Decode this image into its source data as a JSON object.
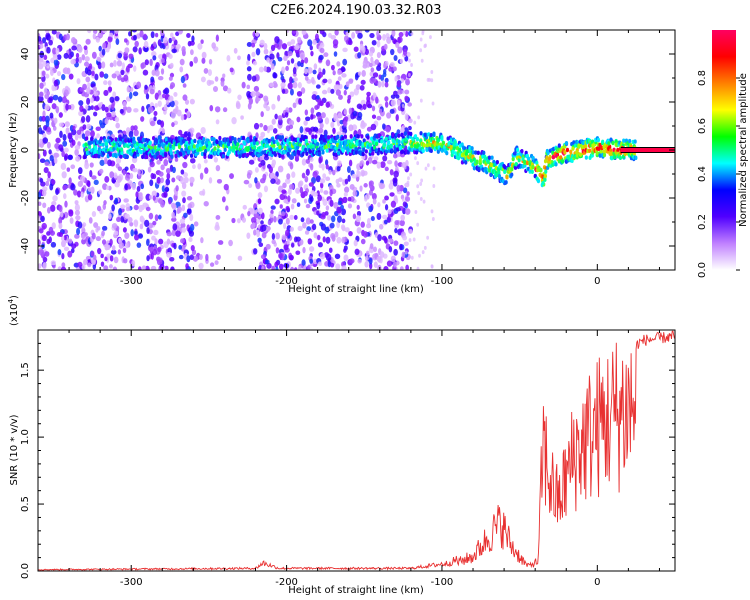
{
  "title": "C2E6.2024.190.03.32.R03",
  "chart_data": [
    {
      "type": "heatmap",
      "xlabel": "Height of straight line (km)",
      "ylabel": "Frequency (Hz)",
      "xlim": [
        -360,
        50
      ],
      "ylim": [
        -50,
        50
      ],
      "x_ticks": [
        -300,
        -200,
        -100,
        0
      ],
      "y_ticks": [
        40,
        20,
        0,
        -20,
        -40
      ],
      "noise_region_x": [
        -360,
        -120
      ],
      "sparse_gap_x": [
        -260,
        -225
      ],
      "ridge": [
        {
          "x": -330,
          "y": 1
        },
        {
          "x": -250,
          "y": 1
        },
        {
          "x": -150,
          "y": 2
        },
        {
          "x": -120,
          "y": 3
        },
        {
          "x": -100,
          "y": 3
        },
        {
          "x": -85,
          "y": -2
        },
        {
          "x": -70,
          "y": -6
        },
        {
          "x": -58,
          "y": -11
        },
        {
          "x": -52,
          "y": -3
        },
        {
          "x": -42,
          "y": -6
        },
        {
          "x": -35,
          "y": -12
        },
        {
          "x": -32,
          "y": -4
        },
        {
          "x": -20,
          "y": -1
        },
        {
          "x": 0,
          "y": 1
        },
        {
          "x": 15,
          "y": 0
        },
        {
          "x": 50,
          "y": 0
        }
      ],
      "colorbar": {
        "label": "Normalized spectral amplitude",
        "ticks": [
          0.0,
          0.2,
          0.4,
          0.6,
          0.8
        ],
        "range": [
          0,
          1
        ],
        "colors": [
          "#ffffff",
          "#c080ff",
          "#5000ff",
          "#0000ff",
          "#00ffff",
          "#00ff00",
          "#ffff00",
          "#ff8000",
          "#ff0000",
          "#ff0060"
        ]
      }
    },
    {
      "type": "line",
      "xlabel": "Height of straight line (km)",
      "ylabel": "SNR (10 * v/v)",
      "multiplier": "(x10",
      "multiplier_exp": "4",
      "multiplier_close": ")",
      "xlim": [
        -360,
        50
      ],
      "ylim": [
        0,
        1.8
      ],
      "x_ticks": [
        -300,
        -200,
        -100,
        0
      ],
      "y_ticks": [
        0.0,
        0.5,
        1.0,
        1.5
      ],
      "y_tick_labels": [
        "0.0",
        "0.5",
        "1.0",
        "1.5"
      ],
      "color": "#e83030",
      "envelope": [
        {
          "x": -360,
          "y": 0.01
        },
        {
          "x": -220,
          "y": 0.02
        },
        {
          "x": -215,
          "y": 0.06
        },
        {
          "x": -205,
          "y": 0.02
        },
        {
          "x": -120,
          "y": 0.02
        },
        {
          "x": -95,
          "y": 0.06
        },
        {
          "x": -80,
          "y": 0.15
        },
        {
          "x": -70,
          "y": 0.35
        },
        {
          "x": -62,
          "y": 0.5
        },
        {
          "x": -55,
          "y": 0.25
        },
        {
          "x": -45,
          "y": 0.05
        },
        {
          "x": -38,
          "y": 0.1
        },
        {
          "x": -35,
          "y": 1.3
        },
        {
          "x": -30,
          "y": 0.9
        },
        {
          "x": -25,
          "y": 0.7
        },
        {
          "x": -15,
          "y": 1.2
        },
        {
          "x": -5,
          "y": 1.4
        },
        {
          "x": 5,
          "y": 1.55
        },
        {
          "x": 15,
          "y": 1.65
        },
        {
          "x": 30,
          "y": 1.75
        },
        {
          "x": 50,
          "y": 1.78
        }
      ]
    }
  ]
}
